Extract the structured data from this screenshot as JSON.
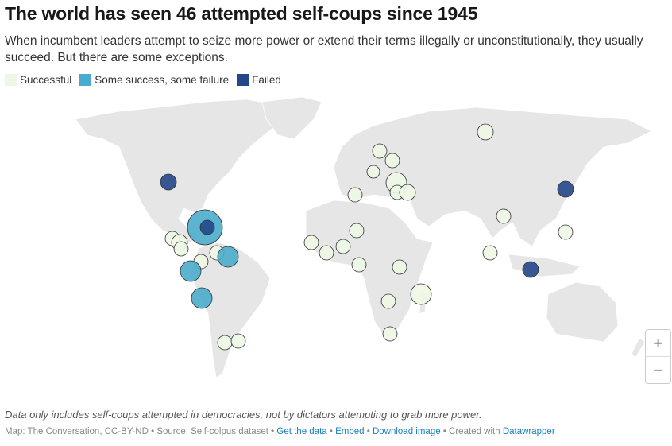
{
  "title": "The world has seen 46 attempted self-coups since 1945",
  "description": "When incumbent leaders attempt to seize more power or extend their terms illegally or unconstitutionally, they usually succeed. But there are some exceptions.",
  "legend": [
    {
      "label": "Successful",
      "color": "#eef7e6"
    },
    {
      "label": "Some success, some failure",
      "color": "#4aaccc"
    },
    {
      "label": "Failed",
      "color": "#24478a"
    }
  ],
  "zoom": {
    "in": "+",
    "out": "−"
  },
  "note": "Data only includes self-coups attempted in democracies, not by dictators attempting to grab more power.",
  "footer": {
    "credit": "Map: The Conversation, CC-BY-ND",
    "source": "Source: Self-colpus dataset",
    "get_data": "Get the data",
    "embed": "Embed",
    "download": "Download image",
    "created": "Created with",
    "tool": "Datawrapper"
  },
  "markers": [
    "successful",
    "successful",
    "successful",
    "successful",
    "successful",
    "successful",
    "successful",
    "successful",
    "successful",
    "successful",
    "successful",
    "successful",
    "successful",
    "successful",
    "successful",
    "successful",
    "successful",
    "successful",
    "successful",
    "successful",
    "successful",
    "successful",
    "successful",
    "successful",
    "successful",
    "successful",
    "successful",
    "mixed",
    "mixed",
    "mixed",
    "mixed",
    "failed",
    "failed",
    "failed",
    "failed"
  ]
}
